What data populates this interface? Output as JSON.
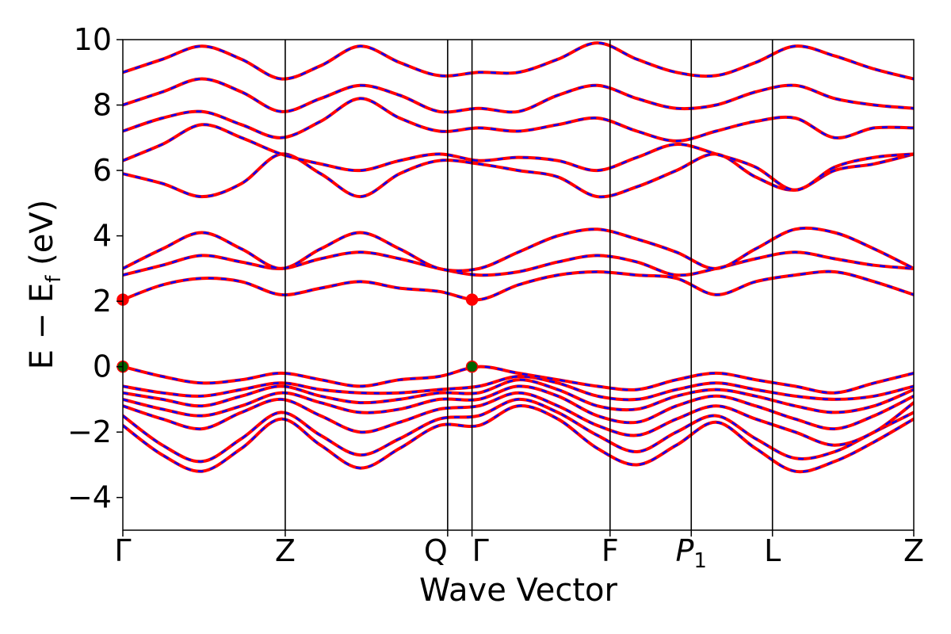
{
  "chart_data": {
    "type": "line",
    "title": "",
    "xlabel": "Wave Vector",
    "ylabel": "E − E_f (eV)",
    "ylabel_parts": {
      "main": "E  −  E",
      "sub": "f",
      "unit": " (eV)"
    },
    "ylim": [
      -5,
      10
    ],
    "yticks": [
      -4,
      -2,
      0,
      2,
      4,
      6,
      8,
      10
    ],
    "ytick_labels": [
      "−4",
      "−2",
      "0",
      "2",
      "4",
      "6",
      "8",
      "10"
    ],
    "grid": false,
    "legend": "none",
    "high_symmetry_points": [
      {
        "label": "Γ",
        "x": 0.0
      },
      {
        "label": "Z",
        "x": 1.0
      },
      {
        "label": "Q",
        "x": 2.0
      },
      {
        "label": "Γ",
        "x": 2.15
      },
      {
        "label": "F",
        "x": 3.0
      },
      {
        "label": "P",
        "sub": "1",
        "x": 3.5
      },
      {
        "label": "L",
        "x": 4.0
      },
      {
        "label": "Z",
        "x": 4.87
      }
    ],
    "xlim": [
      0.0,
      4.87
    ],
    "colors": {
      "band_main": "#ff0000",
      "band_overlay": "#0000ff",
      "vbm": "#006400",
      "cbm": "#ff0000"
    },
    "band_edges": [
      {
        "kind": "vbm",
        "x": 0.0,
        "y": 0.0
      },
      {
        "kind": "vbm",
        "x": 2.15,
        "y": 0.0
      },
      {
        "kind": "cbm",
        "x": 0.0,
        "y": 2.05
      },
      {
        "kind": "cbm",
        "x": 2.15,
        "y": 2.05
      }
    ],
    "series": [
      {
        "values": [
          -1.8,
          -2.7,
          -3.2,
          -2.5,
          -1.6,
          -2.4,
          -3.1,
          -2.5,
          -1.8,
          -1.8,
          -1.2,
          -1.6,
          -2.5,
          -3.0,
          -2.4,
          -1.7,
          -2.5,
          -3.2,
          -2.9,
          -2.3,
          -1.6
        ]
      },
      {
        "values": [
          -1.5,
          -2.4,
          -2.9,
          -2.2,
          -1.4,
          -2.1,
          -2.7,
          -2.2,
          -1.6,
          -1.5,
          -1.0,
          -1.4,
          -2.1,
          -2.6,
          -2.0,
          -1.5,
          -2.2,
          -2.8,
          -2.6,
          -2.0,
          -1.4
        ]
      },
      {
        "values": [
          -1.2,
          -1.6,
          -1.9,
          -1.4,
          -1.0,
          -1.5,
          -2.0,
          -1.7,
          -1.3,
          -1.2,
          -0.8,
          -1.2,
          -1.8,
          -2.1,
          -1.6,
          -1.2,
          -1.6,
          -2.0,
          -2.4,
          -2.0,
          -1.1
        ]
      },
      {
        "values": [
          -1.0,
          -1.3,
          -1.5,
          -1.2,
          -0.8,
          -1.1,
          -1.4,
          -1.3,
          -1.0,
          -1.0,
          -0.6,
          -0.9,
          -1.5,
          -1.7,
          -1.2,
          -0.9,
          -1.2,
          -1.6,
          -1.9,
          -1.5,
          -0.9
        ]
      },
      {
        "values": [
          -0.8,
          -1.0,
          -1.2,
          -0.9,
          -0.6,
          -0.9,
          -1.1,
          -1.0,
          -0.8,
          -0.8,
          -0.4,
          -0.7,
          -1.2,
          -1.3,
          -0.9,
          -0.7,
          -0.9,
          -1.2,
          -1.4,
          -1.2,
          -0.7
        ]
      },
      {
        "values": [
          -0.6,
          -0.8,
          -0.9,
          -0.7,
          -0.5,
          -0.7,
          -0.8,
          -0.8,
          -0.7,
          -0.6,
          -0.3,
          -0.5,
          -0.9,
          -1.0,
          -0.7,
          -0.5,
          -0.7,
          -0.9,
          -1.0,
          -0.9,
          -0.6
        ]
      },
      {
        "values": [
          0.0,
          -0.3,
          -0.5,
          -0.4,
          -0.2,
          -0.4,
          -0.6,
          -0.4,
          -0.3,
          0.0,
          -0.2,
          -0.4,
          -0.6,
          -0.7,
          -0.4,
          -0.2,
          -0.4,
          -0.6,
          -0.8,
          -0.5,
          -0.2
        ]
      },
      {
        "values": [
          2.05,
          2.5,
          2.7,
          2.6,
          2.2,
          2.4,
          2.6,
          2.4,
          2.3,
          2.05,
          2.5,
          2.8,
          2.9,
          2.8,
          2.7,
          2.2,
          2.6,
          2.8,
          2.9,
          2.6,
          2.2
        ]
      },
      {
        "values": [
          2.8,
          3.1,
          3.4,
          3.2,
          3.0,
          3.3,
          3.5,
          3.3,
          3.0,
          2.8,
          2.9,
          3.2,
          3.4,
          3.2,
          2.8,
          3.0,
          3.3,
          3.5,
          3.3,
          3.1,
          3.0
        ]
      },
      {
        "values": [
          3.0,
          3.6,
          4.1,
          3.6,
          3.0,
          3.6,
          4.1,
          3.6,
          3.0,
          3.0,
          3.5,
          4.0,
          4.2,
          3.9,
          3.5,
          3.0,
          3.6,
          4.2,
          4.1,
          3.6,
          3.0
        ]
      },
      {
        "values": [
          5.9,
          5.6,
          5.2,
          5.6,
          6.5,
          5.9,
          5.2,
          5.9,
          6.3,
          6.2,
          6.0,
          5.8,
          5.2,
          5.5,
          6.0,
          6.5,
          5.8,
          5.4,
          6.0,
          6.2,
          6.5
        ]
      },
      {
        "values": [
          6.3,
          6.8,
          7.4,
          7.0,
          6.5,
          6.2,
          6.0,
          6.3,
          6.5,
          6.3,
          6.4,
          6.3,
          6.0,
          6.4,
          6.8,
          6.5,
          6.1,
          5.4,
          6.1,
          6.4,
          6.5
        ]
      },
      {
        "values": [
          7.2,
          7.6,
          7.8,
          7.4,
          7.0,
          7.5,
          8.2,
          7.6,
          7.2,
          7.3,
          7.2,
          7.4,
          7.6,
          7.2,
          6.9,
          7.2,
          7.5,
          7.6,
          7.0,
          7.3,
          7.3
        ]
      },
      {
        "values": [
          8.0,
          8.4,
          8.8,
          8.4,
          7.8,
          8.2,
          8.6,
          8.3,
          7.8,
          7.9,
          7.8,
          8.3,
          8.6,
          8.2,
          7.9,
          8.0,
          8.4,
          8.6,
          8.2,
          8.0,
          7.9
        ]
      },
      {
        "values": [
          9.0,
          9.4,
          9.8,
          9.4,
          8.8,
          9.2,
          9.8,
          9.3,
          8.9,
          9.0,
          9.0,
          9.4,
          9.9,
          9.4,
          9.0,
          8.9,
          9.3,
          9.8,
          9.5,
          9.1,
          8.8
        ]
      }
    ]
  }
}
